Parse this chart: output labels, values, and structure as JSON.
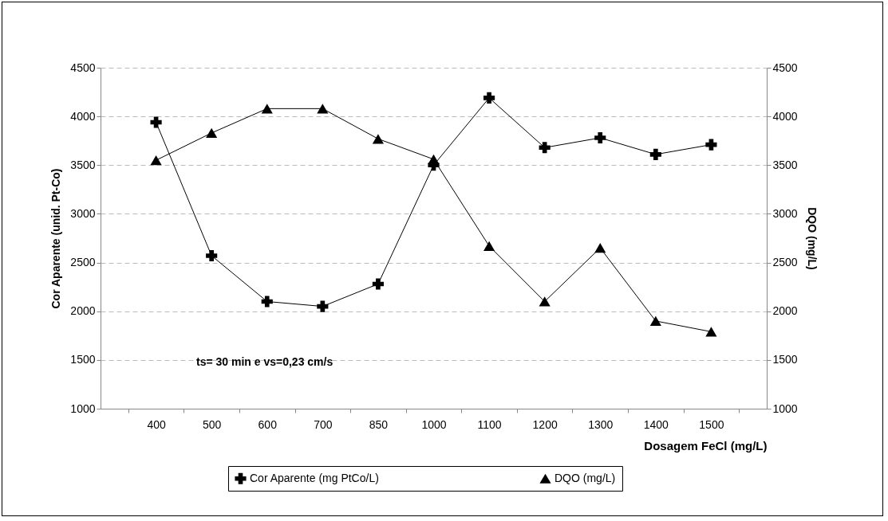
{
  "chart_data": {
    "type": "line",
    "xlabel": "Dosagem FeCl (mg/L)",
    "ylabel": "Cor Aparente (unid. Pt-Co)",
    "y2label": "DQO (mg/L)",
    "categories": [
      "400",
      "500",
      "600",
      "700",
      "850",
      "1000",
      "1100",
      "1200",
      "1300",
      "1400",
      "1500"
    ],
    "series": [
      {
        "name": "Cor Aparente (mg PtCo/L)",
        "color": "#000000",
        "marker": "cross",
        "values": [
          3940,
          2570,
          2100,
          2050,
          2280,
          3500,
          4190,
          3680,
          3780,
          3610,
          3710
        ]
      },
      {
        "name": "DQO (mg/L)",
        "color": "#000000",
        "marker": "triangle",
        "axis": "y2",
        "values": [
          3550,
          3830,
          4080,
          4080,
          3770,
          3560,
          2670,
          2100,
          2650,
          1900,
          1790
        ]
      }
    ],
    "ylim": [
      1000,
      4500
    ],
    "yticks": [
      1000,
      1500,
      2000,
      2500,
      3000,
      3500,
      4000,
      4500
    ],
    "y2lim": [
      1000,
      4500
    ],
    "y2ticks": [
      1000,
      1500,
      2000,
      2500,
      3000,
      3500,
      4000,
      4500
    ],
    "grid": "y",
    "legend": "bottom",
    "line_style": "solid",
    "annotations": [
      "ts= 30 min e vs=0,23 cm/s"
    ]
  }
}
